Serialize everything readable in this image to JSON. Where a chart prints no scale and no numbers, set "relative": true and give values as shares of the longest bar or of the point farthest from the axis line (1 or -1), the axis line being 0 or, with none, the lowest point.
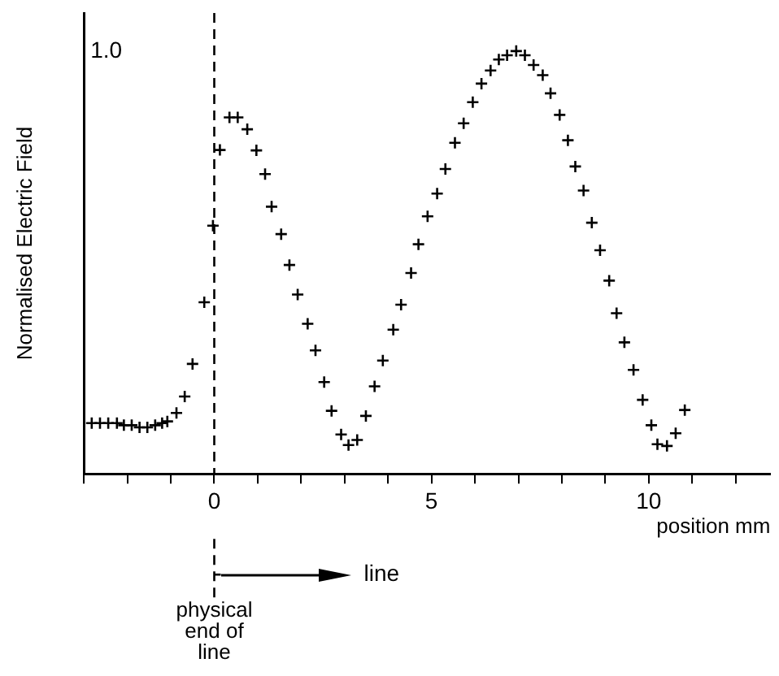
{
  "chart_data": {
    "type": "scatter",
    "relative": true,
    "ylabel": "Normalised Electric Field",
    "xlabel": "position mm",
    "xlim": [
      -3,
      12.8
    ],
    "xticks": [
      {
        "value": -3,
        "label": null
      },
      {
        "value": -2,
        "label": null
      },
      {
        "value": -1,
        "label": null
      },
      0,
      {
        "value": 1,
        "label": null
      },
      {
        "value": 2,
        "label": null
      },
      {
        "value": 3,
        "label": null
      },
      {
        "value": 4,
        "label": null
      },
      5,
      {
        "value": 6,
        "label": null
      },
      {
        "value": 7,
        "label": null
      },
      {
        "value": 8,
        "label": null
      },
      {
        "value": 9,
        "label": null
      },
      10,
      {
        "value": 11,
        "label": null
      },
      {
        "value": 12,
        "label": null
      }
    ],
    "x": [
      -2.82,
      -2.63,
      -2.44,
      -2.24,
      -2.08,
      -1.9,
      -1.72,
      -1.54,
      -1.36,
      -1.2,
      -1.08,
      -0.87,
      -0.68,
      -0.5,
      -0.23,
      -0.03,
      0.13,
      0.35,
      0.54,
      0.76,
      0.97,
      1.17,
      1.32,
      1.54,
      1.73,
      1.92,
      2.15,
      2.33,
      2.53,
      2.7,
      2.92,
      3.09,
      3.29,
      3.49,
      3.69,
      3.88,
      4.12,
      4.3,
      4.53,
      4.7,
      4.91,
      5.13,
      5.32,
      5.54,
      5.74,
      5.95,
      6.15,
      6.36,
      6.55,
      6.74,
      6.95,
      7.15,
      7.35,
      7.56,
      7.74,
      7.95,
      8.14,
      8.31,
      8.5,
      8.69,
      8.88,
      9.09,
      9.26,
      9.44,
      9.65,
      9.86,
      10.06,
      10.2,
      10.42,
      10.62,
      10.83
    ],
    "series": [
      {
        "color": "#000000",
        "values": [
          0.12,
          0.12,
          0.12,
          0.12,
          0.115,
          0.115,
          0.11,
          0.11,
          0.115,
          0.12,
          0.124,
          0.144,
          0.183,
          0.26,
          0.406,
          0.587,
          0.766,
          0.843,
          0.843,
          0.815,
          0.765,
          0.709,
          0.632,
          0.567,
          0.494,
          0.424,
          0.355,
          0.292,
          0.217,
          0.149,
          0.093,
          0.068,
          0.08,
          0.137,
          0.207,
          0.268,
          0.341,
          0.4,
          0.475,
          0.543,
          0.609,
          0.663,
          0.721,
          0.783,
          0.829,
          0.879,
          0.923,
          0.954,
          0.98,
          0.99,
          1.0,
          0.99,
          0.967,
          0.943,
          0.9,
          0.849,
          0.789,
          0.727,
          0.67,
          0.594,
          0.529,
          0.457,
          0.38,
          0.311,
          0.246,
          0.175,
          0.115,
          0.07,
          0.066,
          0.096,
          0.151
        ]
      }
    ],
    "marker": "cross",
    "grid": false,
    "legend": false,
    "ref_lines": [
      {
        "axis": "x",
        "value": 0,
        "label": "physical end of line",
        "line_style": "dashed",
        "color": "#000000"
      }
    ],
    "annotations": [
      "1.0",
      "line"
    ]
  }
}
